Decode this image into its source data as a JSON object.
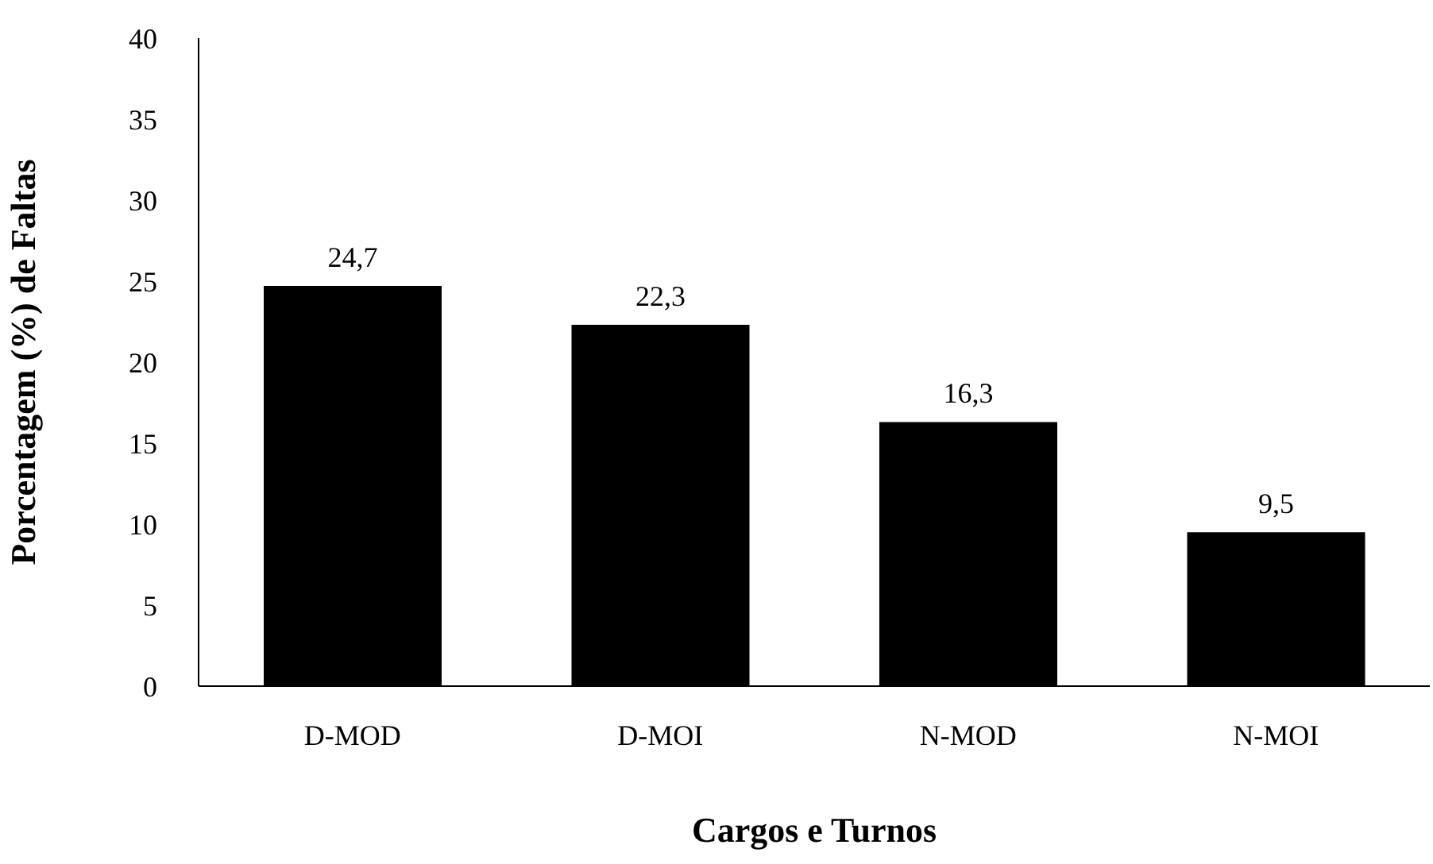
{
  "chart_data": {
    "type": "bar",
    "xlabel": "Cargos e Turnos",
    "ylabel": "Porcentagem (%) de Faltas",
    "categories": [
      "D-MOD",
      "D-MOI",
      "N-MOD",
      "N-MOI"
    ],
    "values": [
      24.7,
      22.3,
      16.3,
      9.5
    ],
    "value_labels": [
      "24,7",
      "22,3",
      "16,3",
      "9,5"
    ],
    "color": "#000000",
    "ylim": [
      0,
      40
    ],
    "yticks": [
      0,
      5,
      10,
      15,
      20,
      25,
      30,
      35,
      40
    ],
    "grid": false,
    "legend": false
  }
}
